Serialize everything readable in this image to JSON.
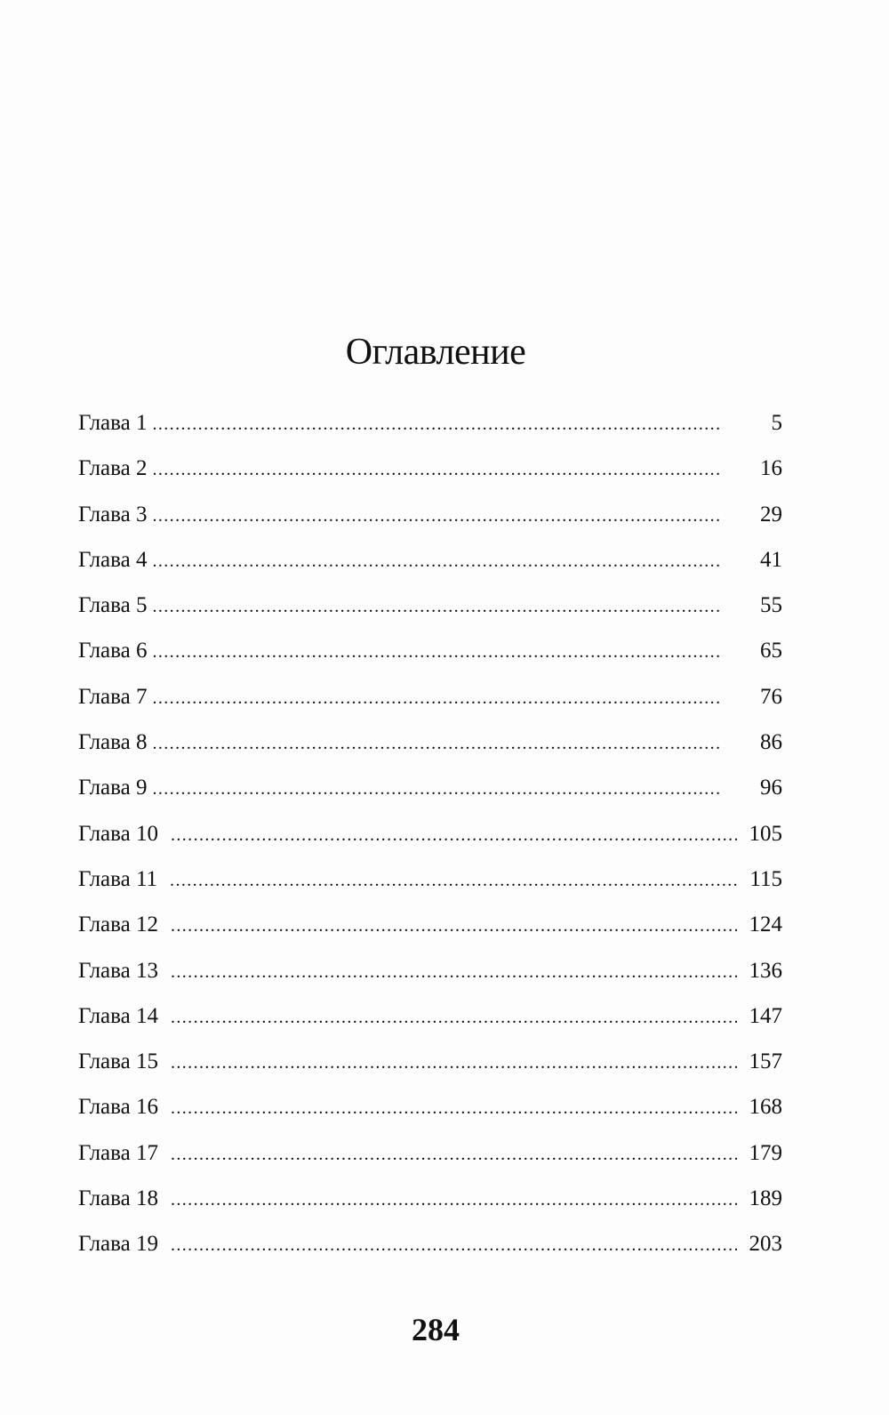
{
  "title": "Оглавление",
  "entries": [
    {
      "label": "Глава 1",
      "page": "5"
    },
    {
      "label": "Глава 2",
      "page": "16"
    },
    {
      "label": "Глава 3",
      "page": "29"
    },
    {
      "label": "Глава 4",
      "page": "41"
    },
    {
      "label": "Глава 5",
      "page": "55"
    },
    {
      "label": "Глава 6",
      "page": "65"
    },
    {
      "label": "Глава 7",
      "page": "76"
    },
    {
      "label": "Глава 8",
      "page": "86"
    },
    {
      "label": "Глава 9",
      "page": "96"
    },
    {
      "label": "Глава 10",
      "page": "105"
    },
    {
      "label": "Глава 11",
      "page": "115"
    },
    {
      "label": "Глава 12",
      "page": "124"
    },
    {
      "label": "Глава 13",
      "page": "136"
    },
    {
      "label": "Глава 14",
      "page": "147"
    },
    {
      "label": "Глава 15",
      "page": "157"
    },
    {
      "label": "Глава 16",
      "page": "168"
    },
    {
      "label": "Глава 17",
      "page": "179"
    },
    {
      "label": "Глава 18",
      "page": "189"
    },
    {
      "label": "Глава 19",
      "page": "203"
    }
  ],
  "folio": "284"
}
